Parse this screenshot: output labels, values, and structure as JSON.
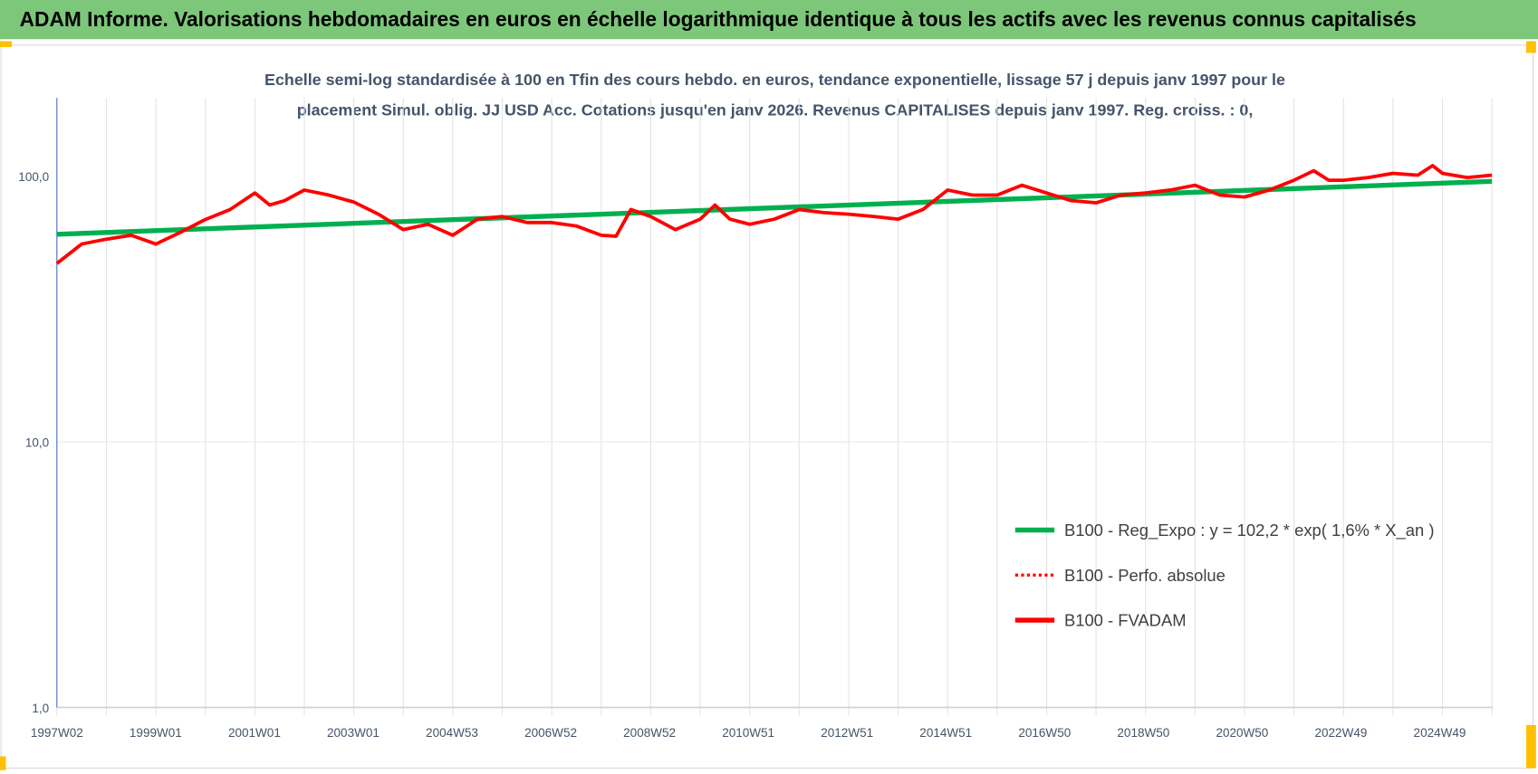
{
  "header": {
    "title": "ADAM Informe. Valorisations hebdomadaires en euros en échelle logarithmique identique à tous les actifs avec les revenus connus capitalisés"
  },
  "colors": {
    "header_bg": "#7dc77a",
    "trend": "#00b050",
    "series": "#ff0000",
    "accent": "#ffc000",
    "axis": "#4472c4"
  },
  "chart_data": {
    "type": "line",
    "title_lines": [
      "Echelle semi-log standardisée à 100 en Tfin des cours hebdo. en euros, tendance exponentielle, lissage 57 j depuis janv 1997 pour le",
      "placement Simul. oblig. JJ USD Acc. Cotations jusqu'en janv 2026. Revenus CAPITALISES depuis janv 1997. Reg. croiss. : 0,"
    ],
    "yscale": "log",
    "ylim": [
      1,
      200
    ],
    "xlim": [
      1997.0,
      2026.1
    ],
    "y_ticks": [
      {
        "v": 1,
        "label": "1,0"
      },
      {
        "v": 10,
        "label": "10,0"
      },
      {
        "v": 100,
        "label": "100,0"
      }
    ],
    "x_ticks": [
      "1997W02",
      "1999W01",
      "2001W01",
      "2003W01",
      "2004W53",
      "2006W52",
      "2008W52",
      "2010W51",
      "2012W51",
      "2014W51",
      "2016W50",
      "2018W50",
      "2020W50",
      "2022W49",
      "2024W49"
    ],
    "grid": "vertical",
    "legend_position": "bottom-right",
    "series": [
      {
        "name": "B100 - Reg_Expo : y = 102,2 * exp( 1,6% *  X_an )",
        "style": "solid-green",
        "x": [
          1997.0,
          2026.0
        ],
        "y": [
          60.5,
          95.8
        ]
      },
      {
        "name": "B100 - Perfo. absolue",
        "style": "dotted-red",
        "x": [],
        "y": []
      },
      {
        "name": "B100 - FVADAM",
        "style": "solid-red",
        "x": [
          1997.0,
          1997.5,
          1998.0,
          1998.5,
          1999.0,
          1999.5,
          2000.0,
          2000.5,
          2001.0,
          2001.3,
          2001.6,
          2002.0,
          2002.5,
          2003.0,
          2003.5,
          2004.0,
          2004.5,
          2005.0,
          2005.5,
          2006.0,
          2006.5,
          2007.0,
          2007.5,
          2008.0,
          2008.3,
          2008.6,
          2009.0,
          2009.5,
          2010.0,
          2010.3,
          2010.6,
          2011.0,
          2011.5,
          2012.0,
          2012.5,
          2013.0,
          2013.5,
          2014.0,
          2014.5,
          2015.0,
          2015.5,
          2016.0,
          2016.5,
          2017.0,
          2017.5,
          2018.0,
          2018.5,
          2019.0,
          2019.5,
          2020.0,
          2020.5,
          2021.0,
          2021.5,
          2022.0,
          2022.4,
          2022.7,
          2023.0,
          2023.5,
          2024.0,
          2024.5,
          2024.8,
          2025.0,
          2025.5,
          2026.0
        ],
        "y": [
          47,
          55.6,
          58,
          60,
          55.6,
          61.6,
          68.8,
          75,
          86.6,
          78,
          81,
          88.8,
          85,
          80,
          72,
          63,
          66,
          60,
          69,
          70.6,
          67,
          67,
          65,
          60,
          59.5,
          75,
          70.6,
          63,
          69,
          78,
          69,
          66,
          69,
          75,
          73,
          72,
          70.6,
          69,
          75,
          88.8,
          85,
          85,
          92.6,
          86.6,
          81,
          79.5,
          85,
          86.6,
          88.8,
          92.6,
          85,
          83.6,
          88.8,
          96.7,
          105,
          96.7,
          96.7,
          99,
          102.6,
          101,
          109.8,
          102.6,
          99,
          101
        ]
      }
    ]
  }
}
